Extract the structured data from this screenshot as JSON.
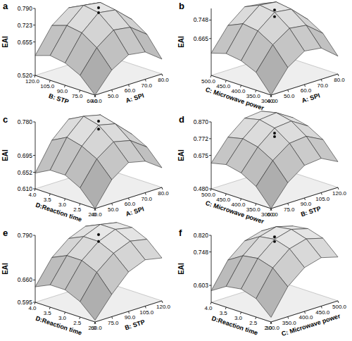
{
  "chart_data": [
    {
      "type": "surface3d",
      "title": "a",
      "x_label": "A: SPI",
      "y_label": "B: STP",
      "z_label": "EAI",
      "xlim": [
        40,
        80
      ],
      "ylim": [
        60,
        120
      ],
      "zlim": [
        0.52,
        0.79
      ],
      "xticks": [
        {
          "value": 40,
          "label": "40.0"
        },
        {
          "value": 50,
          "label": "50.0"
        },
        {
          "value": 60,
          "label": "60.0"
        },
        {
          "value": 70,
          "label": "70.0"
        },
        {
          "value": 80,
          "label": "80.0"
        }
      ],
      "yticks": [
        {
          "value": 60,
          "label": "60.0"
        },
        {
          "value": 75,
          "label": "75.0"
        },
        {
          "value": 90,
          "label": "90.0"
        },
        {
          "value": 105,
          "label": "105.0"
        },
        {
          "value": 120,
          "label": "120.0"
        }
      ],
      "zticks": [
        {
          "value": 0.52,
          "label": "0.520"
        },
        0.655,
        0.723,
        {
          "value": 0.79,
          "label": "0.790"
        }
      ],
      "x": [
        40,
        50,
        60,
        70,
        80
      ],
      "y": [
        60,
        75,
        90,
        105,
        120
      ],
      "z": [
        [
          0.52,
          0.6,
          0.64,
          0.63,
          0.58
        ],
        [
          0.58,
          0.67,
          0.72,
          0.71,
          0.66
        ],
        [
          0.61,
          0.71,
          0.77,
          0.76,
          0.7
        ],
        [
          0.62,
          0.72,
          0.78,
          0.77,
          0.71
        ],
        [
          0.6,
          0.7,
          0.75,
          0.74,
          0.68
        ]
      ],
      "points": {
        "x": [
          60,
          60
        ],
        "y": [
          90,
          90
        ],
        "z": [
          0.79,
          0.77
        ]
      }
    },
    {
      "type": "surface3d",
      "title": "b",
      "x_label": "A: SPI",
      "y_label": "C: Microwave power",
      "z_label": "EAI",
      "xlim": [
        40,
        80
      ],
      "ylim": [
        300,
        500
      ],
      "zlim": [
        0.5,
        0.8
      ],
      "xticks": [
        {
          "value": 40,
          "label": "40.0"
        },
        {
          "value": 50,
          "label": "50.0"
        },
        {
          "value": 60,
          "label": "60.0"
        },
        {
          "value": 70,
          "label": "70.0"
        },
        {
          "value": 80,
          "label": "80.0"
        }
      ],
      "yticks": [
        {
          "value": 300,
          "label": "300.0"
        },
        {
          "value": 350,
          "label": "350.0"
        },
        {
          "value": 400,
          "label": "400.0"
        },
        {
          "value": 450,
          "label": "450.0"
        },
        {
          "value": 500,
          "label": "500.0"
        }
      ],
      "zticks": [
        0.665,
        0.748
      ],
      "x": [
        40,
        50,
        60,
        70,
        80
      ],
      "y": [
        300,
        350,
        400,
        450,
        500
      ],
      "z": [
        [
          0.5,
          0.6,
          0.65,
          0.64,
          0.58
        ],
        [
          0.58,
          0.68,
          0.73,
          0.72,
          0.66
        ],
        [
          0.61,
          0.72,
          0.78,
          0.77,
          0.7
        ],
        [
          0.62,
          0.73,
          0.79,
          0.78,
          0.71
        ],
        [
          0.6,
          0.7,
          0.76,
          0.75,
          0.68
        ]
      ],
      "points": {
        "x": [
          60,
          60
        ],
        "y": [
          400,
          400
        ],
        "z": [
          0.79,
          0.76
        ]
      }
    },
    {
      "type": "surface3d",
      "title": "c",
      "x_label": "A: SPI",
      "y_label": "D:Reaction time",
      "z_label": "EAI",
      "xlim": [
        40,
        80
      ],
      "ylim": [
        2,
        4
      ],
      "zlim": [
        0.61,
        0.78
      ],
      "xticks": [
        {
          "value": 40,
          "label": "40.0"
        },
        {
          "value": 50,
          "label": "50.0"
        },
        {
          "value": 60,
          "label": "60.0"
        },
        {
          "value": 70,
          "label": "70.0"
        },
        {
          "value": 80,
          "label": "80.0"
        }
      ],
      "yticks": [
        {
          "value": 2,
          "label": "2.0"
        },
        {
          "value": 2.5,
          "label": "2.5"
        },
        {
          "value": 3,
          "label": "3.0"
        },
        {
          "value": 3.5,
          "label": "3.5"
        },
        {
          "value": 4,
          "label": "4.0"
        }
      ],
      "zticks": [
        {
          "value": 0.61,
          "label": "0.610"
        },
        0.652,
        0.695,
        {
          "value": 0.78,
          "label": "0.780"
        }
      ],
      "x": [
        40,
        50,
        60,
        70,
        80
      ],
      "y": [
        2,
        2.5,
        3,
        3.5,
        4
      ],
      "z": [
        [
          0.61,
          0.67,
          0.7,
          0.69,
          0.66
        ],
        [
          0.65,
          0.71,
          0.74,
          0.73,
          0.7
        ],
        [
          0.67,
          0.73,
          0.77,
          0.76,
          0.72
        ],
        [
          0.67,
          0.74,
          0.78,
          0.77,
          0.72
        ],
        [
          0.65,
          0.72,
          0.76,
          0.75,
          0.7
        ]
      ],
      "points": {
        "x": [
          60,
          60
        ],
        "y": [
          3,
          3
        ],
        "z": [
          0.78,
          0.76
        ]
      }
    },
    {
      "type": "surface3d",
      "title": "d",
      "x_label": "B: STP",
      "y_label": "C: Microwave power",
      "z_label": "EAI",
      "xlim": [
        60,
        120
      ],
      "ylim": [
        300,
        500
      ],
      "zlim": [
        0.48,
        0.87
      ],
      "xticks": [
        {
          "value": 60,
          "label": "60.0"
        },
        {
          "value": 75,
          "label": "75.0"
        },
        {
          "value": 90,
          "label": "90.0"
        },
        {
          "value": 105,
          "label": "105.0"
        },
        {
          "value": 120,
          "label": "120.0"
        }
      ],
      "yticks": [
        {
          "value": 300,
          "label": "300.0"
        },
        {
          "value": 350,
          "label": "350.0"
        },
        {
          "value": 400,
          "label": "400.0"
        },
        {
          "value": 450,
          "label": "450.0"
        },
        {
          "value": 500,
          "label": "500.0"
        }
      ],
      "zticks": [
        {
          "value": 0.48,
          "label": "0.480"
        },
        0.675,
        0.772,
        {
          "value": 0.87,
          "label": "0.870"
        }
      ],
      "x": [
        60,
        75,
        90,
        105,
        120
      ],
      "y": [
        300,
        350,
        400,
        450,
        500
      ],
      "z": [
        [
          0.48,
          0.6,
          0.67,
          0.68,
          0.63
        ],
        [
          0.58,
          0.7,
          0.77,
          0.78,
          0.73
        ],
        [
          0.63,
          0.75,
          0.83,
          0.84,
          0.78
        ],
        [
          0.65,
          0.77,
          0.85,
          0.86,
          0.8
        ],
        [
          0.63,
          0.75,
          0.83,
          0.84,
          0.78
        ]
      ],
      "points": {
        "x": [
          90,
          90
        ],
        "y": [
          400,
          400
        ],
        "z": [
          0.8,
          0.78
        ]
      }
    },
    {
      "type": "surface3d",
      "title": "e",
      "x_label": "B: STP",
      "y_label": "D:Reaction time",
      "z_label": "EAI",
      "xlim": [
        60,
        120
      ],
      "ylim": [
        2,
        4
      ],
      "zlim": [
        0.595,
        0.79
      ],
      "xticks": [
        {
          "value": 60,
          "label": "60.0"
        },
        {
          "value": 75,
          "label": "75.0"
        },
        {
          "value": 90,
          "label": "90.0"
        },
        {
          "value": 105,
          "label": "105.0"
        },
        {
          "value": 120,
          "label": "120.0"
        }
      ],
      "yticks": [
        {
          "value": 2,
          "label": "2.0"
        },
        {
          "value": 2.5,
          "label": "2.5"
        },
        {
          "value": 3,
          "label": "3.0"
        },
        {
          "value": 3.5,
          "label": "3.5"
        },
        {
          "value": 4,
          "label": "4.0"
        }
      ],
      "zticks": [
        0.595,
        {
          "value": 0.66,
          "label": "0.660"
        },
        {
          "value": 0.79,
          "label": "0.790"
        }
      ],
      "x": [
        60,
        75,
        90,
        105,
        120
      ],
      "y": [
        2,
        2.5,
        3,
        3.5,
        4
      ],
      "z": [
        [
          0.6,
          0.66,
          0.71,
          0.73,
          0.72
        ],
        [
          0.64,
          0.71,
          0.75,
          0.77,
          0.76
        ],
        [
          0.66,
          0.73,
          0.77,
          0.79,
          0.78
        ],
        [
          0.66,
          0.73,
          0.77,
          0.79,
          0.78
        ],
        [
          0.64,
          0.71,
          0.75,
          0.77,
          0.76
        ]
      ],
      "points": {
        "x": [
          90,
          90
        ],
        "y": [
          3,
          3
        ],
        "z": [
          0.79,
          0.77
        ]
      }
    },
    {
      "type": "surface3d",
      "title": "f",
      "x_label": "C: Microwave power",
      "y_label": "D:Reaction time",
      "z_label": "EAI",
      "xlim": [
        300,
        500
      ],
      "ylim": [
        2,
        4
      ],
      "zlim": [
        0.53,
        0.82
      ],
      "xticks": [
        {
          "value": 300,
          "label": "300.0"
        },
        {
          "value": 350,
          "label": "350.0"
        },
        {
          "value": 400,
          "label": "400.0"
        },
        {
          "value": 450,
          "label": "450.0"
        },
        {
          "value": 500,
          "label": "500.0"
        }
      ],
      "yticks": [
        {
          "value": 2,
          "label": "2.0"
        },
        {
          "value": 2.5,
          "label": "2.5"
        },
        {
          "value": 3,
          "label": "3.0"
        },
        {
          "value": 3.5,
          "label": "3.5"
        },
        {
          "value": 4,
          "label": "4.0"
        }
      ],
      "zticks": [
        0.603,
        0.748,
        {
          "value": 0.82,
          "label": "0.820"
        }
      ],
      "x": [
        300,
        350,
        400,
        450,
        500
      ],
      "y": [
        2,
        2.5,
        3,
        3.5,
        4
      ],
      "z": [
        [
          0.55,
          0.66,
          0.72,
          0.74,
          0.72
        ],
        [
          0.61,
          0.72,
          0.78,
          0.8,
          0.78
        ],
        [
          0.63,
          0.74,
          0.8,
          0.82,
          0.8
        ],
        [
          0.62,
          0.73,
          0.79,
          0.81,
          0.79
        ],
        [
          0.58,
          0.69,
          0.75,
          0.77,
          0.75
        ]
      ],
      "points": {
        "x": [
          400,
          400
        ],
        "y": [
          3,
          3
        ],
        "z": [
          0.81,
          0.79
        ]
      }
    }
  ]
}
